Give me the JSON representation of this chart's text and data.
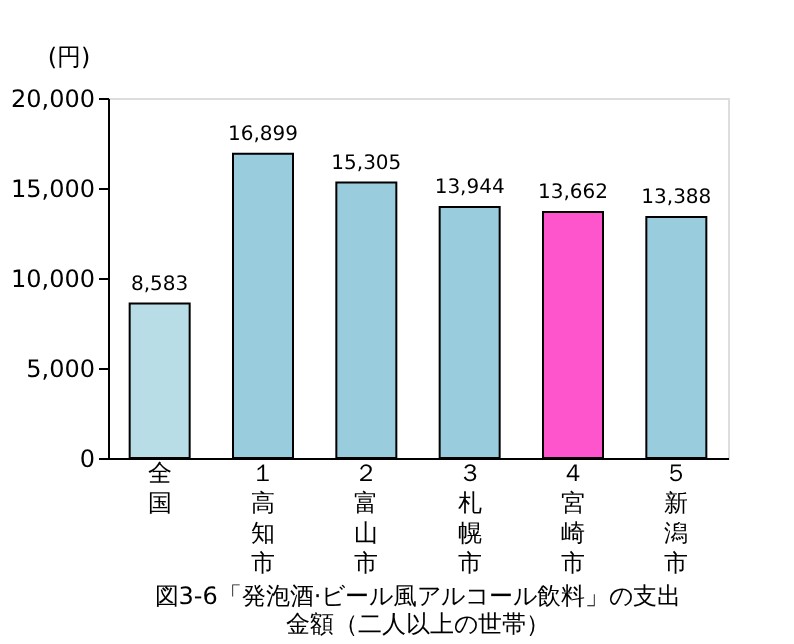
{
  "chart_data": {
    "type": "bar",
    "title": "図3-6「発泡酒·ビール風アルコール飲料」の支出金額（二人以上の世帯）",
    "ylabel": "(円)",
    "categories": [
      "全国",
      "１高知市",
      "２富山市",
      "３札幌市",
      "４宮崎市",
      "５新潟市"
    ],
    "values": [
      8583,
      16899,
      15305,
      13944,
      13662,
      13388
    ],
    "value_labels": [
      "8,583",
      "16,899",
      "15,305",
      "13,944",
      "13,662",
      "13,388"
    ],
    "colors": [
      "#b8dde6",
      "#99ccdd",
      "#99ccdd",
      "#99ccdd",
      "#ff55cc",
      "#99ccdd"
    ],
    "ylim": [
      0,
      20000
    ],
    "yticks": [
      0,
      {
        "value": 5000,
        "label": "5,000"
      },
      {
        "value": 10000,
        "label": "10,000"
      },
      {
        "value": 15000,
        "label": "15,000"
      },
      {
        "value": 20000,
        "label": "20,000"
      }
    ],
    "grid": false
  }
}
